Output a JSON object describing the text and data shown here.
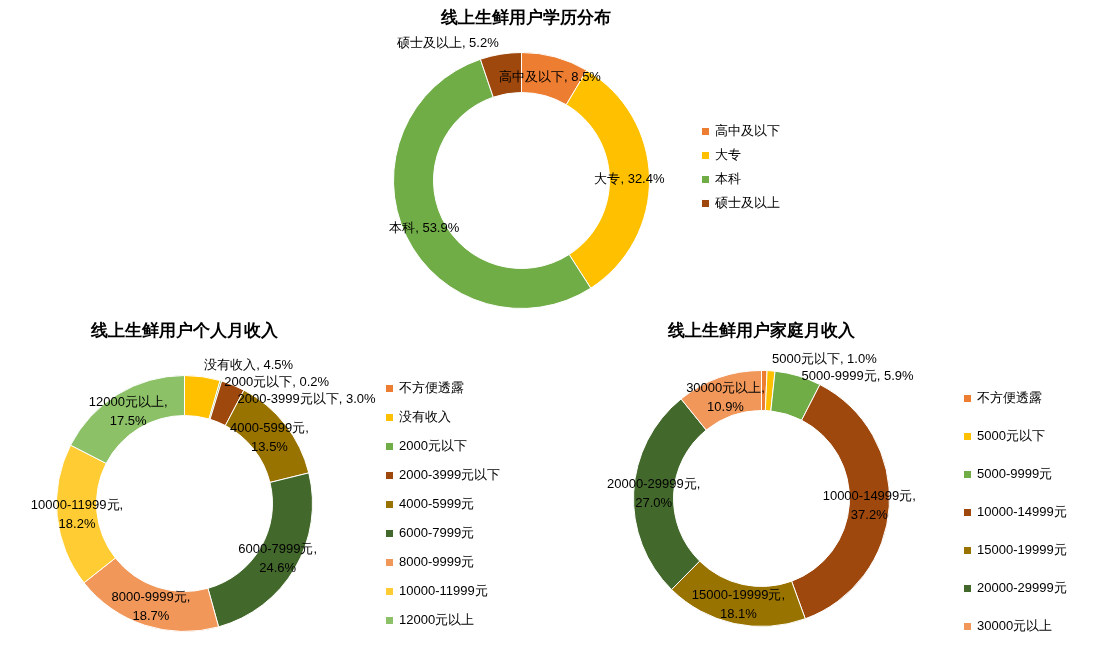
{
  "chart_data": [
    {
      "type": "donut",
      "title": "线上生鲜用户学历分布",
      "categories": [
        "高中及以下",
        "大专",
        "本科",
        "硕士及以上"
      ],
      "values": [
        8.5,
        32.4,
        53.9,
        5.2
      ],
      "colors": [
        "#ed7d31",
        "#ffc000",
        "#70ad47",
        "#9e480e"
      ],
      "value_labels": [
        "高中及以下, 8.5%",
        "大专, 32.4%",
        "本科, 53.9%",
        "硕士及以上, 5.2%"
      ],
      "legend": "right"
    },
    {
      "type": "donut",
      "title": "线上生鲜用户个人月收入",
      "categories": [
        "不方便透露",
        "没有收入",
        "2000元以下",
        "2000-3999元以下",
        "4000-5999元",
        "6000-7999元",
        "8000-9999元",
        "10000-11999元",
        "12000元以上"
      ],
      "values": [
        0,
        4.5,
        0.2,
        3.0,
        13.5,
        24.6,
        18.7,
        18.2,
        17.5
      ],
      "colors": [
        "#ed7d31",
        "#ffc000",
        "#70ad47",
        "#9e480e",
        "#997300",
        "#43682b",
        "#f1975a",
        "#ffcd33",
        "#8cc168"
      ],
      "value_labels": [
        null,
        "没有收入, 4.5%",
        "2000元以下, 0.2%",
        "2000-3999元以下, 3.0%",
        "4000-5999元, 13.5%",
        "6000-7999元, 24.6%",
        "8000-9999元, 18.7%",
        "10000-11999元, 18.2%",
        "12000元以上, 17.5%"
      ],
      "legend": "right"
    },
    {
      "type": "donut",
      "title": "线上生鲜用户家庭月收入",
      "categories": [
        "不方便透露",
        "5000元以下",
        "5000-9999元",
        "10000-14999元",
        "15000-19999元",
        "20000-29999元",
        "30000元以上"
      ],
      "values": [
        0.7,
        1.0,
        5.9,
        37.2,
        18.1,
        27.0,
        10.9
      ],
      "colors": [
        "#ed7d31",
        "#ffc000",
        "#70ad47",
        "#9e480e",
        "#997300",
        "#43682b",
        "#f1975a"
      ],
      "value_labels": [
        null,
        "5000元以下, 1.0%",
        "5000-9999元, 5.9%",
        "10000-14999元, 37.2%",
        "15000-19999元, 18.1%",
        "20000-29999元, 27.0%",
        "30000元以上, 10.9%"
      ],
      "legend": "right"
    }
  ]
}
